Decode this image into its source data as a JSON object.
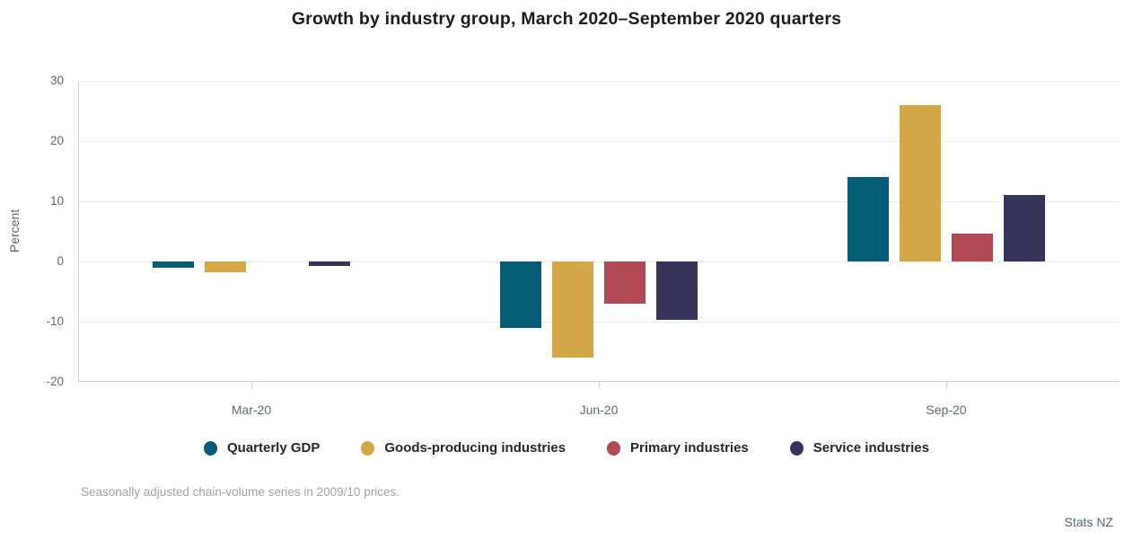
{
  "title": "Growth by industry group, March 2020–September 2020 quarters",
  "footnote": "Seasonally adjusted chain-volume series in 2009/10 prices.",
  "source": "Stats NZ",
  "colors": {
    "gridline": "#ebebeb",
    "axis": "#c7d3e1",
    "tick_label": "#5f6a72",
    "title": "#1c1c1c",
    "legend_text": "#26262e",
    "footnote": "#a2a2a2",
    "source": "#5c6770"
  },
  "chart_data": {
    "type": "bar",
    "title": "Growth by industry group, March 2020–September 2020 quarters",
    "categories": [
      "Mar-20",
      "Jun-20",
      "Sep-20"
    ],
    "series": [
      {
        "name": "Quarterly GDP",
        "color": "#045d74",
        "values": [
          -1.0,
          -11.0,
          14.0
        ]
      },
      {
        "name": "Goods-producing industries",
        "color": "#d3a745",
        "values": [
          -1.8,
          -16.0,
          26.0
        ]
      },
      {
        "name": "Primary industries",
        "color": "#b04953",
        "values": [
          0.0,
          -7.0,
          4.6
        ]
      },
      {
        "name": "Service industries",
        "color": "#37345a",
        "values": [
          -0.7,
          -9.7,
          11.0
        ]
      }
    ],
    "xlabel": "",
    "ylabel": "Percent",
    "ylim": [
      -20,
      30
    ],
    "yticks": [
      30,
      20,
      10,
      0,
      -10,
      -20
    ],
    "grid": true,
    "legend_position": "bottom"
  }
}
